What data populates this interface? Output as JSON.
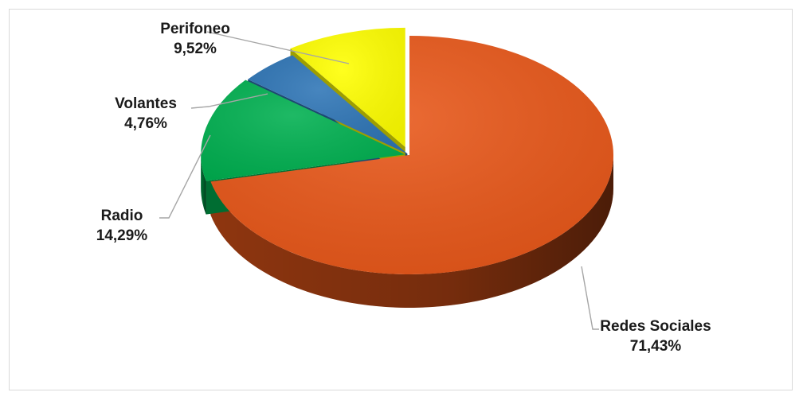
{
  "chart_data": {
    "type": "pie",
    "title": "",
    "categories": [
      "Redes Sociales",
      "Radio",
      "Volantes",
      "Perifoneo"
    ],
    "values": [
      71.43,
      14.29,
      4.76,
      9.52
    ],
    "value_labels": [
      "71,43%",
      "14,29%",
      "4,76%",
      "9,52%"
    ],
    "colors": [
      "#e85719",
      "#00b050",
      "#2e75b6",
      "#ffff00"
    ],
    "legend": "none",
    "style": "3d-exploded",
    "labels": [
      {
        "name": "Redes Sociales",
        "pct": "71,43%"
      },
      {
        "name": "Radio",
        "pct": "14,29%"
      },
      {
        "name": "Volantes",
        "pct": "4,76%"
      },
      {
        "name": "Perifoneo",
        "pct": "9,52%"
      }
    ]
  }
}
